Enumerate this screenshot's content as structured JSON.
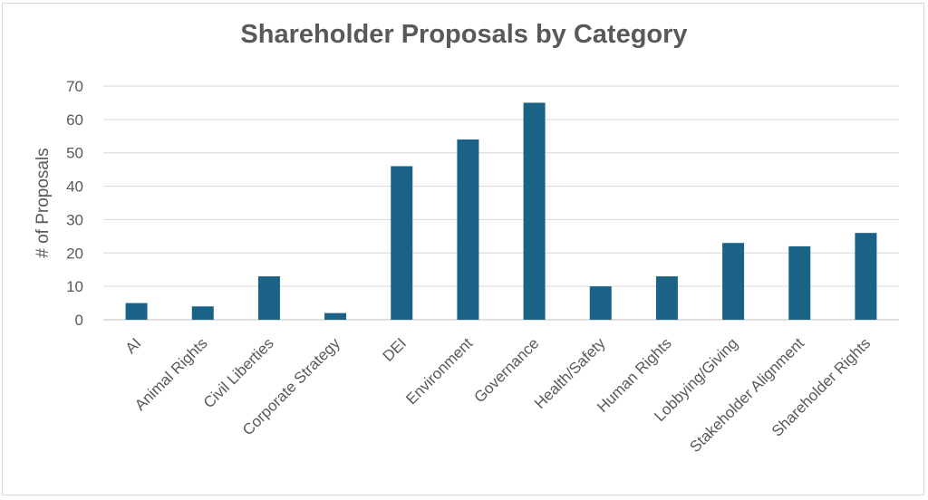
{
  "chart_data": {
    "type": "bar",
    "title": "Shareholder Proposals by Category",
    "xlabel": "",
    "ylabel": "# of Proposals",
    "ylim": [
      0,
      70
    ],
    "yticks": [
      0,
      10,
      20,
      30,
      40,
      50,
      60,
      70
    ],
    "ytick_labels": [
      "0",
      "10",
      "20",
      "30",
      "40",
      "50",
      "60",
      "70"
    ],
    "grid": true,
    "legend": "none",
    "bar_color": "#1a6286",
    "categories": [
      "AI",
      "Animal Rights",
      "Civil Liberties",
      "Corporate Strategy",
      "DEI",
      "Environment",
      "Governance",
      "Health/Safety",
      "Human Rights",
      "Lobbying/Giving",
      "Stakeholder Alignment",
      "Shareholder Rights"
    ],
    "values": [
      5,
      4,
      13,
      2,
      46,
      54,
      65,
      10,
      13,
      23,
      22,
      26
    ]
  }
}
